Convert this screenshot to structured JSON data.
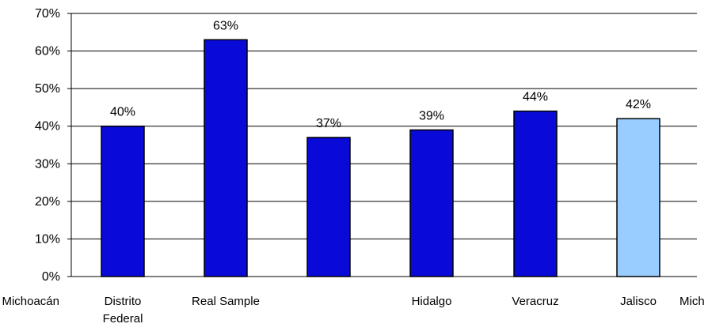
{
  "chart_data": {
    "type": "bar",
    "categories": [
      "Michoacán",
      "Distrito Federal",
      "Real Sample",
      "",
      "Hidalgo",
      "Veracruz",
      "Jalisco",
      "Mich"
    ],
    "values": [
      null,
      40,
      63,
      37,
      39,
      44,
      42,
      null
    ],
    "data_labels": [
      "",
      "40%",
      "63%",
      "37%",
      "39%",
      "44%",
      "42%",
      ""
    ],
    "bar_colors": [
      "",
      "#0a0ad8",
      "#0a0ad8",
      "#0a0ad8",
      "#0a0ad8",
      "#0a0ad8",
      "#99ccff",
      ""
    ],
    "y_tick_labels": [
      "0%",
      "10%",
      "20%",
      "30%",
      "40%",
      "50%",
      "60%",
      "70%"
    ],
    "ylim": [
      0,
      70
    ],
    "grid": true,
    "title": "",
    "xlabel": "",
    "ylabel": ""
  }
}
